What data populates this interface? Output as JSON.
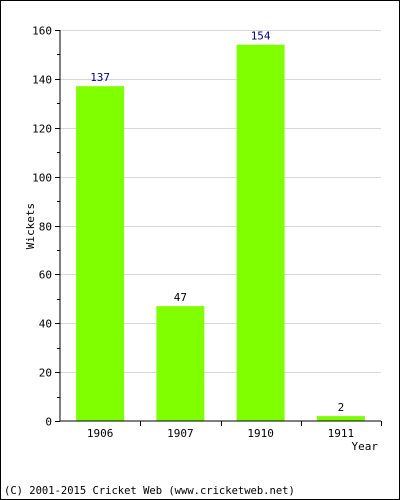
{
  "chart_data": {
    "type": "bar",
    "categories": [
      "1906",
      "1907",
      "1910",
      "1911"
    ],
    "values": [
      137,
      47,
      154,
      2
    ],
    "ylabel": "Wickets",
    "xlabel": "Year",
    "ylim": [
      0,
      160
    ],
    "yticks": [
      "0",
      "20",
      "40",
      "60",
      "80",
      "100",
      "120",
      "140",
      "160"
    ],
    "bar_color": "#80ff00",
    "value_label_colors": [
      "#000080",
      "#000000",
      "#000080",
      "#000000"
    ],
    "grid": true
  },
  "footer": {
    "copyright": "(C) 2001-2015 Cricket Web (www.cricketweb.net)"
  }
}
